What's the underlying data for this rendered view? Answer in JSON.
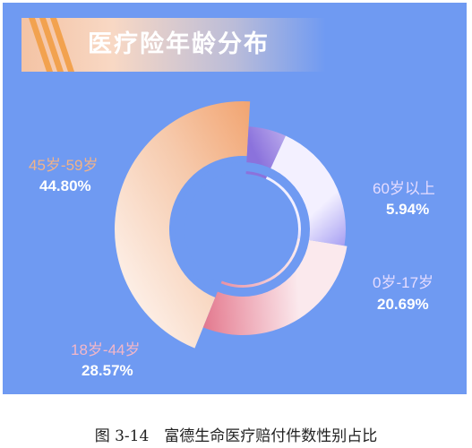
{
  "colors": {
    "panel": "#6f9af2",
    "banner": "#f4c3a4",
    "slice_45_59": "#ef8d4c",
    "slice_18_44": "#c8264c",
    "slice_0_17": "#6654e8",
    "slice_60": "#a08ce8"
  },
  "chart_data": {
    "type": "pie",
    "variant": "donut",
    "title": "医疗险年龄分布",
    "slices": [
      {
        "label": "45岁-59岁",
        "value": 44.8,
        "display": "44.80%"
      },
      {
        "label": "60岁以上",
        "value": 5.94,
        "display": "5.94%"
      },
      {
        "label": "0岁-17岁",
        "value": 20.69,
        "display": "20.69%"
      },
      {
        "label": "18岁-44岁",
        "value": 28.57,
        "display": "28.57%"
      }
    ],
    "caption": "图 3-14　富德生命医疗赔付件数性别占比"
  }
}
